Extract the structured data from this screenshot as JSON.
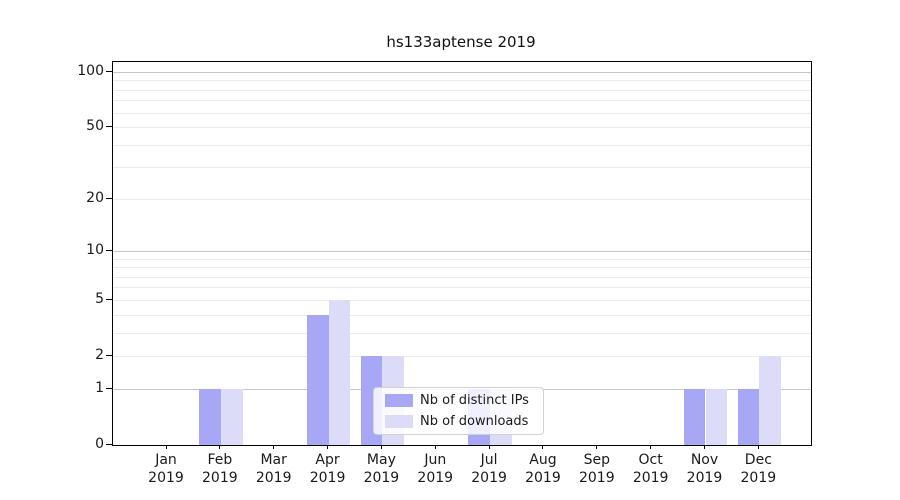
{
  "chart_data": {
    "type": "bar",
    "title": "hs133aptense 2019",
    "categories": [
      "Jan",
      "Feb",
      "Mar",
      "Apr",
      "May",
      "Jun",
      "Jul",
      "Aug",
      "Sep",
      "Oct",
      "Nov",
      "Dec"
    ],
    "x_year_label": "2019",
    "series": [
      {
        "name": "Nb of distinct IPs",
        "color": "#a7a7f5",
        "values": [
          0,
          1,
          0,
          4,
          2,
          0,
          1,
          0,
          0,
          0,
          1,
          1
        ]
      },
      {
        "name": "Nb of downloads",
        "color": "#dcdcf9",
        "values": [
          0,
          1,
          0,
          5,
          2,
          0,
          1,
          0,
          0,
          0,
          1,
          2
        ]
      }
    ],
    "yscale": "log1p",
    "ylim": [
      0,
      112
    ],
    "ytick_values": [
      0,
      1,
      2,
      5,
      10,
      20,
      50,
      100
    ],
    "ytick_labels": [
      "0",
      "1",
      "2",
      "5",
      "10",
      "20",
      "50",
      "100"
    ],
    "decade_grid_values": [
      1,
      10,
      100
    ],
    "minor_grid_values": [
      2,
      3,
      4,
      5,
      6,
      7,
      8,
      9,
      20,
      30,
      40,
      50,
      60,
      70,
      80,
      90
    ],
    "grid": "on",
    "legend_position": "lower center",
    "colors": {
      "decade_grid": "#c6c6c6",
      "minor_grid": "#eaeaea",
      "axis": "#000000",
      "text": "#1a1a1a",
      "legend_border": "#d2d2d2",
      "legend_bg": "rgba(255,255,255,0.82)"
    }
  }
}
